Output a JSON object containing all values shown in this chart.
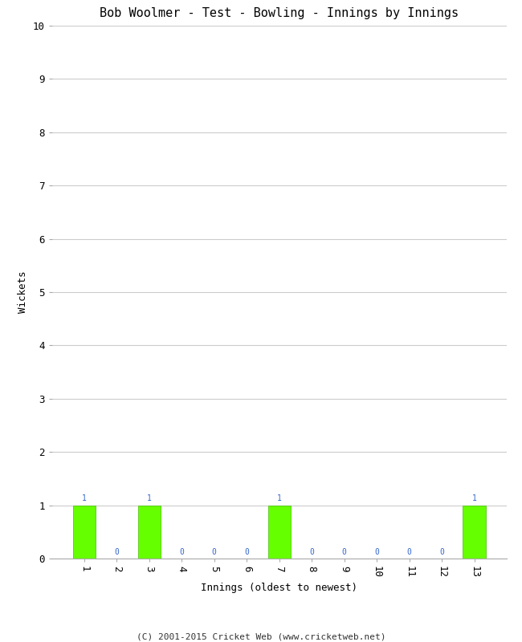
{
  "title": "Bob Woolmer - Test - Bowling - Innings by Innings",
  "xlabel": "Innings (oldest to newest)",
  "ylabel": "Wickets",
  "categories": [
    1,
    2,
    3,
    4,
    5,
    6,
    7,
    8,
    9,
    10,
    11,
    12,
    13
  ],
  "values": [
    1,
    0,
    1,
    0,
    0,
    0,
    1,
    0,
    0,
    0,
    0,
    0,
    1
  ],
  "bar_color": "#66ff00",
  "bar_edge_color": "#44bb00",
  "label_color": "#3366cc",
  "ylim": [
    0,
    10
  ],
  "yticks": [
    0,
    1,
    2,
    3,
    4,
    5,
    6,
    7,
    8,
    9,
    10
  ],
  "background_color": "#ffffff",
  "grid_color": "#cccccc",
  "title_fontsize": 11,
  "axis_label_fontsize": 9,
  "bar_label_fontsize": 7,
  "tick_fontsize": 9,
  "footer": "(C) 2001-2015 Cricket Web (www.cricketweb.net)",
  "footer_fontsize": 8
}
